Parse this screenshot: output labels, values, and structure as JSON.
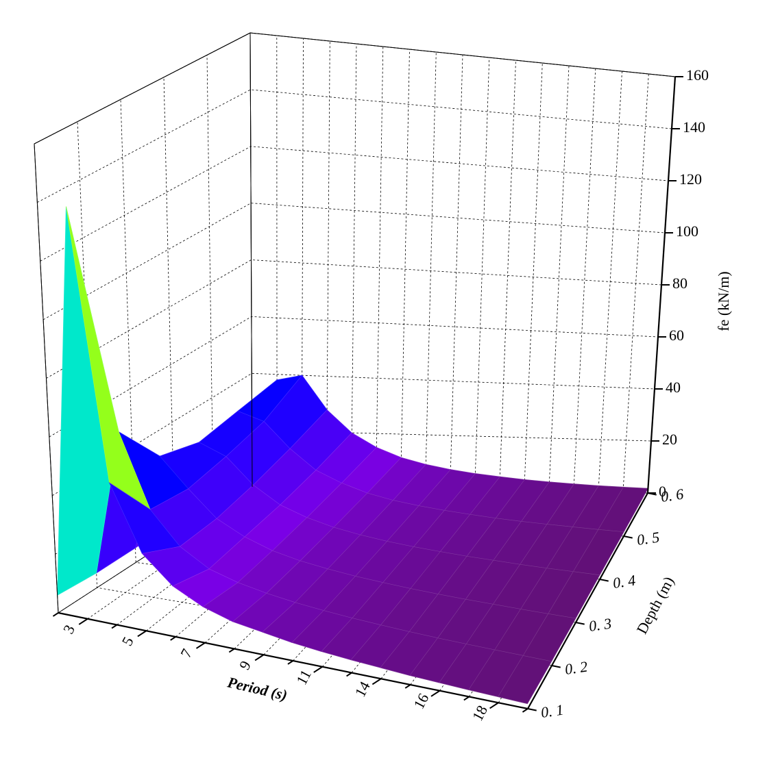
{
  "chart_data": {
    "type": "surface3d",
    "xlabel": "Period (s)",
    "ylabel": "Depth (m)",
    "zlabel": "fe (kN/m)",
    "categories": [
      null,
      "3",
      null,
      "5",
      null,
      "7",
      null,
      "9",
      null,
      "11",
      null,
      "14",
      null,
      "16",
      null,
      "18",
      null
    ],
    "y": [
      0.1,
      0.2,
      0.3,
      0.4,
      0.5,
      0.6
    ],
    "ylim": [
      0.1,
      0.6
    ],
    "yticks": [
      {
        "value": 0.1,
        "label": "0. 1"
      },
      {
        "value": 0.2,
        "label": "0. 2"
      },
      {
        "value": 0.3,
        "label": "0. 3"
      },
      {
        "value": 0.4,
        "label": "0. 4"
      },
      {
        "value": 0.5,
        "label": "0. 5"
      },
      {
        "value": 0.6,
        "label": "0. 6"
      }
    ],
    "zlim": [
      0,
      160
    ],
    "zticks": [
      0,
      20,
      40,
      60,
      80,
      100,
      120,
      140,
      160
    ],
    "grid": true,
    "values": [
      [
        6,
        140,
        48,
        26,
        17,
        12,
        9,
        7.5,
        6,
        5,
        4.2,
        3.6,
        3,
        2.6,
        2.2,
        1.9,
        1.6
      ],
      [
        5,
        55,
        30,
        19,
        13,
        10,
        8,
        6.5,
        5.4,
        4.5,
        3.8,
        3.2,
        2.7,
        2.3,
        2,
        1.7,
        1.4
      ],
      [
        5,
        38,
        28,
        19,
        14,
        10.5,
        8.3,
        6.8,
        5.6,
        4.7,
        3.9,
        3.3,
        2.8,
        2.4,
        2,
        1.7,
        1.4
      ],
      [
        6,
        34,
        30,
        21,
        15,
        11.5,
        9,
        7.3,
        6,
        5,
        4.2,
        3.5,
        3,
        2.5,
        2.1,
        1.8,
        1.5
      ],
      [
        8,
        36,
        33,
        24,
        17,
        13,
        10,
        8,
        6.6,
        5.5,
        4.6,
        3.8,
        3.2,
        2.7,
        2.3,
        1.9,
        1.6
      ],
      [
        10,
        38,
        40,
        28,
        20,
        15,
        11.5,
        9.2,
        7.5,
        6.2,
        5.2,
        4.3,
        3.6,
        3,
        2.5,
        2.1,
        1.8
      ]
    ]
  }
}
